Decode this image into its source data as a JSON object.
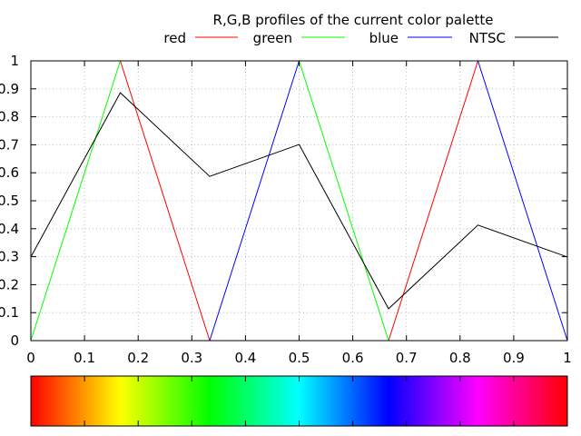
{
  "chart_data": {
    "type": "line",
    "title": "R,G,B profiles of the current color palette",
    "xlim": [
      0,
      1
    ],
    "ylim": [
      0,
      1
    ],
    "grid": true,
    "legend_position": "top",
    "x_ticks": [
      "0",
      "0.1",
      "0.2",
      "0.3",
      "0.4",
      "0.5",
      "0.6",
      "0.7",
      "0.8",
      "0.9",
      "1"
    ],
    "y_ticks": [
      "0",
      "0.1",
      "0.2",
      "0.3",
      "0.4",
      "0.5",
      "0.6",
      "0.7",
      "0.8",
      "0.9",
      "1"
    ],
    "series": [
      {
        "name": "red",
        "color": "#ff0000",
        "x": [
          0,
          0.1667,
          0.3333,
          0.5,
          0.6667,
          0.8333,
          1
        ],
        "y": [
          1,
          1,
          0,
          0,
          0,
          1,
          1
        ]
      },
      {
        "name": "green",
        "color": "#00ff00",
        "x": [
          0,
          0.1667,
          0.3333,
          0.5,
          0.6667,
          0.8333,
          1
        ],
        "y": [
          0,
          1,
          1,
          1,
          0,
          0,
          0
        ]
      },
      {
        "name": "blue",
        "color": "#0000ff",
        "x": [
          0,
          0.1667,
          0.3333,
          0.5,
          0.6667,
          0.8333,
          1
        ],
        "y": [
          0,
          0,
          0,
          1,
          1,
          1,
          0
        ]
      },
      {
        "name": "NTSC",
        "color": "#000000",
        "x": [
          0,
          0.1667,
          0.3333,
          0.5,
          0.6667,
          0.8333,
          1
        ],
        "y": [
          0.299,
          0.886,
          0.587,
          0.701,
          0.114,
          0.413,
          0.299
        ]
      }
    ],
    "colorbar": {
      "stops": [
        "#ff0000",
        "#ffff00",
        "#00ff00",
        "#00ffff",
        "#0000ff",
        "#ff00ff",
        "#ff0000"
      ]
    }
  }
}
